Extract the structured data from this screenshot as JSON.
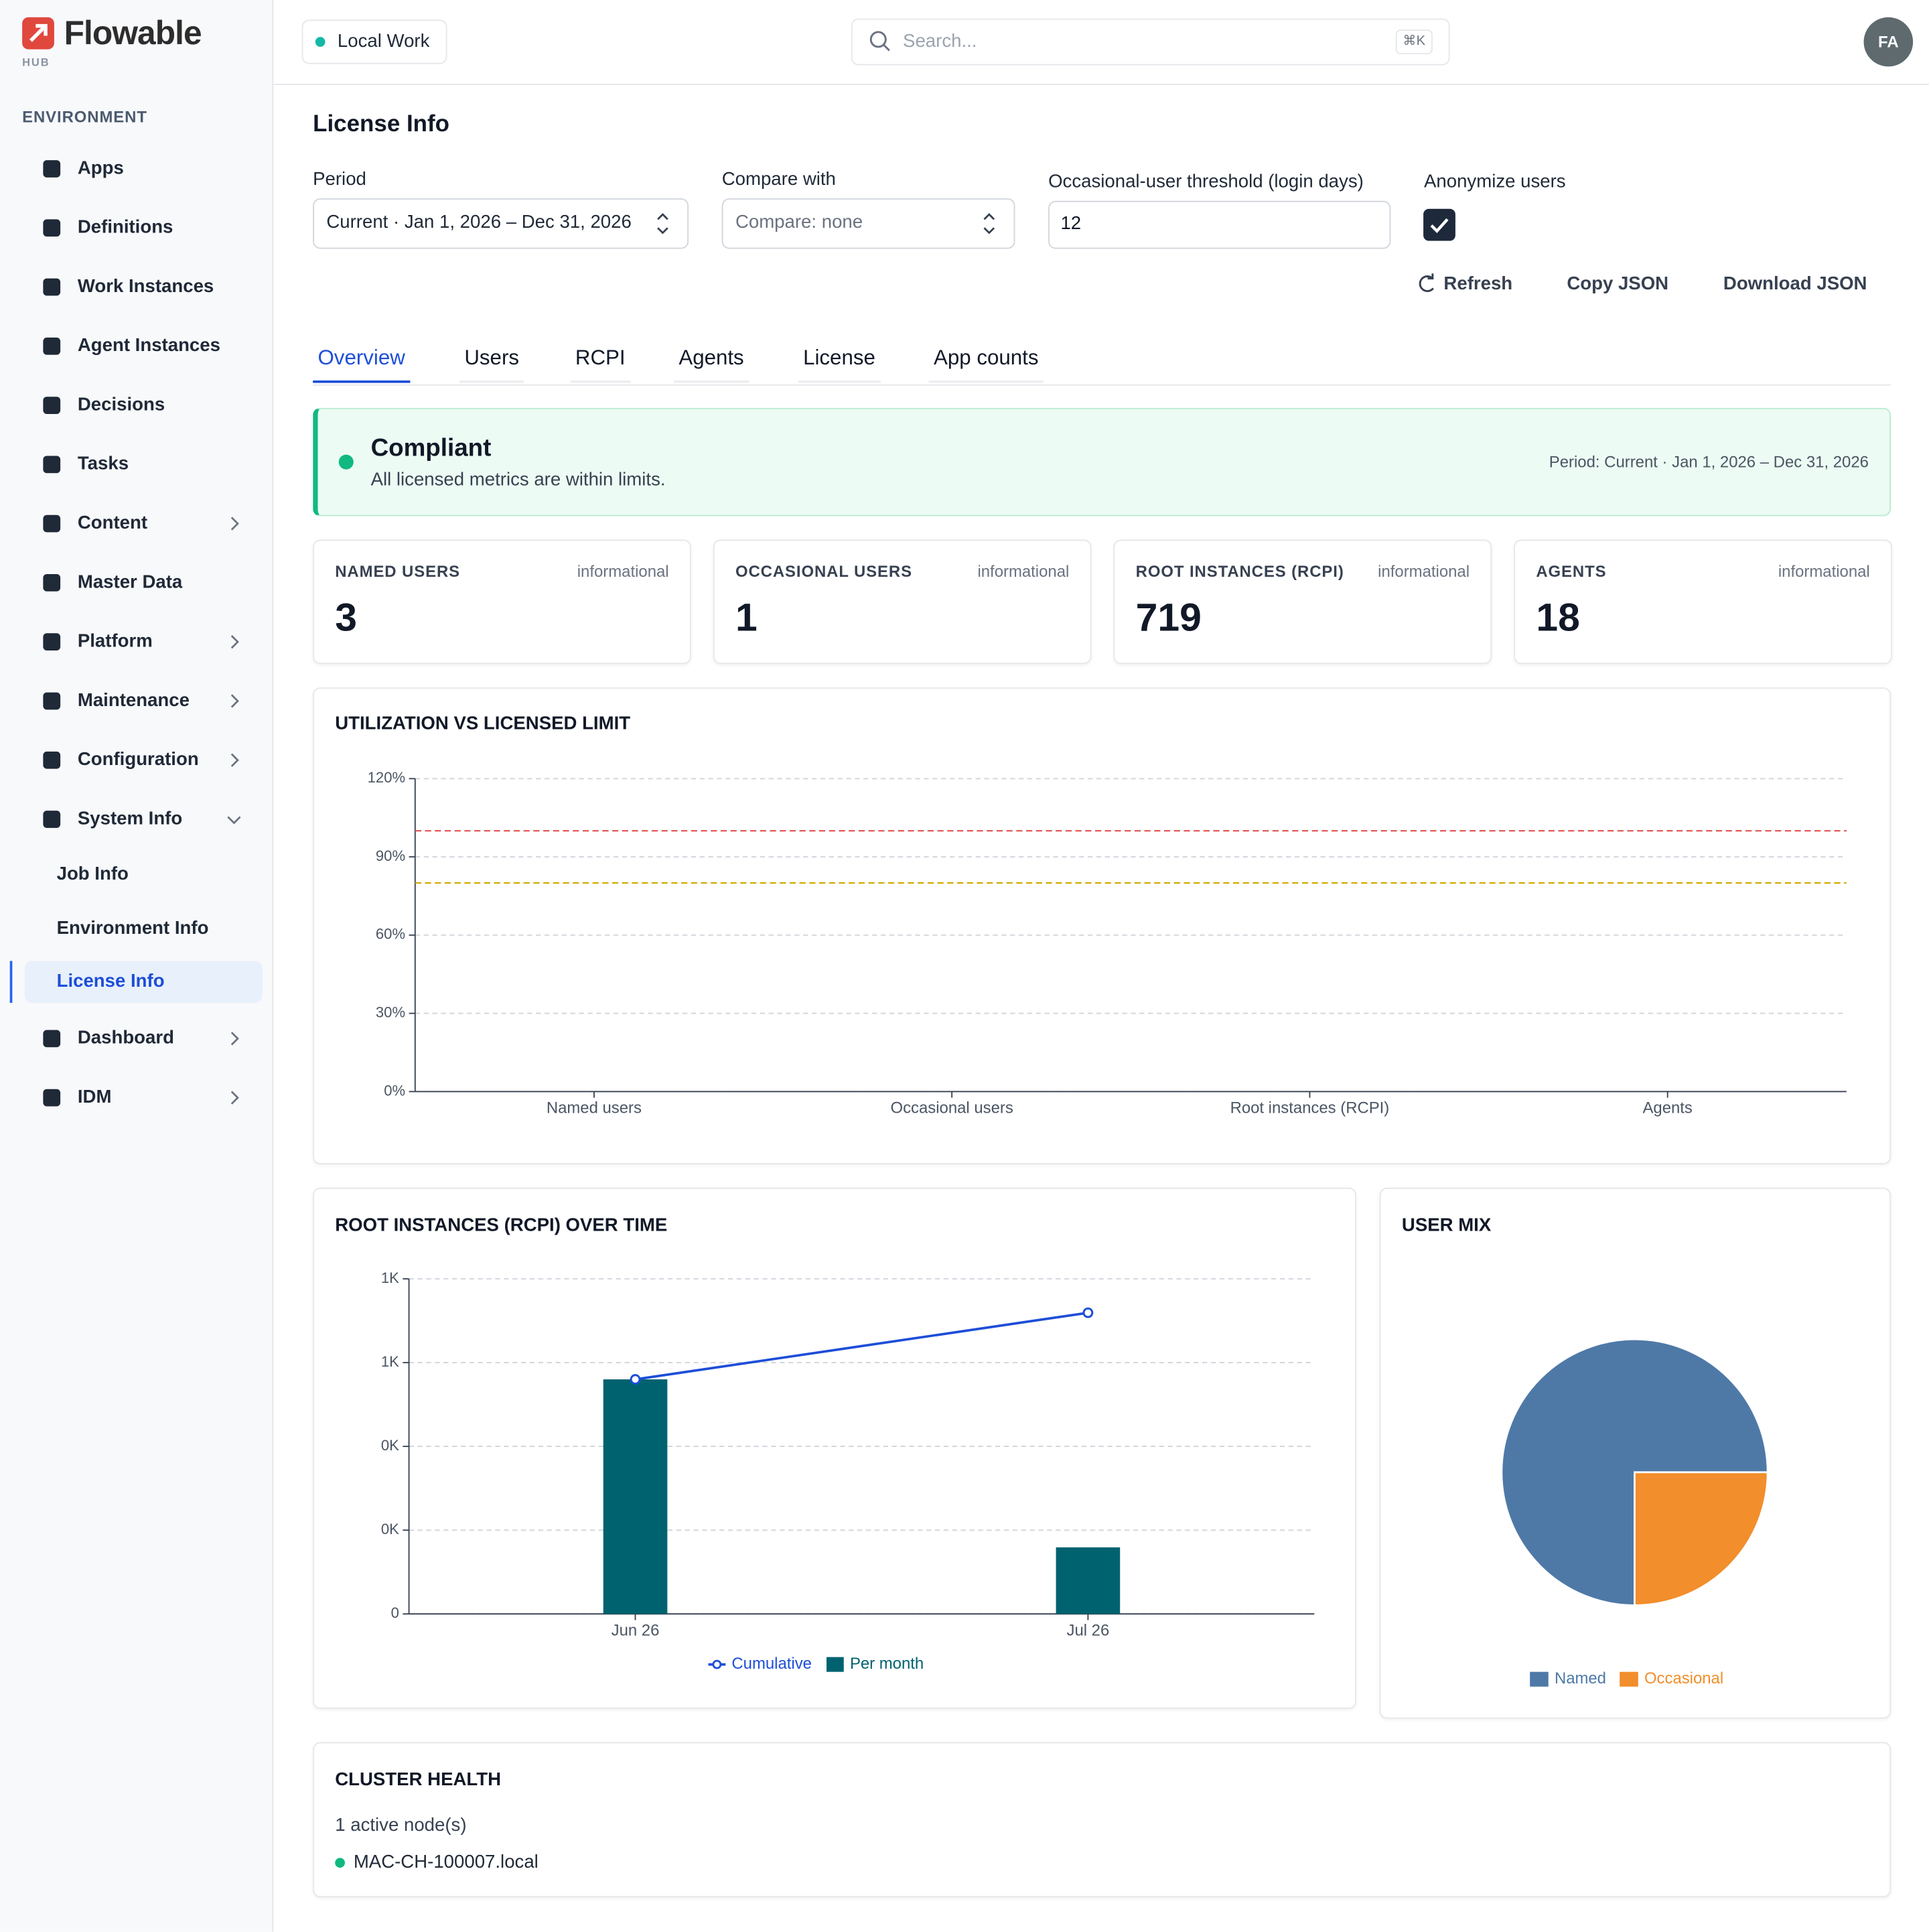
{
  "brand": {
    "name": "Flowable",
    "sub": "HUB"
  },
  "topbar": {
    "workspace": "Local Work",
    "search": "Search...",
    "shortcut": "⌘K",
    "avatar": "FA"
  },
  "sidebar": {
    "section": "ENVIRONMENT",
    "items": [
      {
        "label": "Apps"
      },
      {
        "label": "Definitions"
      },
      {
        "label": "Work Instances"
      },
      {
        "label": "Agent Instances"
      },
      {
        "label": "Decisions"
      },
      {
        "label": "Tasks"
      },
      {
        "label": "Content",
        "chevron": "right"
      },
      {
        "label": "Master Data"
      },
      {
        "label": "Platform",
        "chevron": "right"
      },
      {
        "label": "Maintenance",
        "chevron": "right"
      },
      {
        "label": "Configuration",
        "chevron": "right"
      },
      {
        "label": "System Info",
        "chevron": "down",
        "children": [
          {
            "label": "Job Info"
          },
          {
            "label": "Environment Info"
          },
          {
            "label": "License Info",
            "active": true
          }
        ]
      },
      {
        "label": "Dashboard",
        "chevron": "right"
      },
      {
        "label": "IDM",
        "chevron": "right"
      }
    ]
  },
  "page": {
    "title": "License Info",
    "filters": {
      "period": {
        "label": "Period",
        "value": "Current · Jan 1, 2026 – Dec 31, 2026"
      },
      "compare": {
        "label": "Compare with",
        "placeholder": "Compare: none"
      },
      "threshold": {
        "label": "Occasional-user threshold (login days)",
        "value": "12"
      },
      "anonymize": {
        "label": "Anonymize users",
        "checked": true
      }
    },
    "actions": [
      "Refresh",
      "Copy JSON",
      "Download JSON"
    ],
    "tabs": {
      "items": [
        "Overview",
        "Users",
        "RCPI",
        "Agents",
        "License",
        "App counts"
      ],
      "active": 0
    },
    "status": {
      "title": "Compliant",
      "message": "All licensed metrics are within limits.",
      "period": "Period: Current · Jan 1, 2026 – Dec 31, 2026"
    },
    "stats": [
      {
        "label": "NAMED USERS",
        "tag": "informational",
        "value": 3
      },
      {
        "label": "OCCASIONAL USERS",
        "tag": "informational",
        "value": 1
      },
      {
        "label": "ROOT INSTANCES (RCPI)",
        "tag": "informational",
        "value": 719
      },
      {
        "label": "AGENTS",
        "tag": "informational",
        "value": 18
      }
    ],
    "cluster": {
      "title": "CLUSTER HEALTH",
      "summary": "1 active node(s)",
      "nodes": [
        "MAC-CH-100007.local"
      ]
    }
  },
  "chart_data": [
    {
      "type": "bar",
      "title": "UTILIZATION VS LICENSED LIMIT",
      "categories": [
        "Named users",
        "Occasional users",
        "Root instances (RCPI)",
        "Agents"
      ],
      "values": [
        0,
        0,
        0,
        0
      ],
      "color": "#4e79a7",
      "ylim": [
        0,
        120
      ],
      "yticks": [
        {
          "value": 0,
          "label": "0%"
        },
        {
          "value": 30,
          "label": "30%"
        },
        {
          "value": 60,
          "label": "60%"
        },
        {
          "value": 90,
          "label": "90%"
        },
        {
          "value": 120,
          "label": "120%"
        }
      ],
      "grid": true,
      "reference_lines": [
        {
          "value": 100,
          "color": "#e0514f"
        },
        {
          "value": 80,
          "color": "#d4aa00"
        }
      ]
    },
    {
      "type": "combo",
      "title": "ROOT INSTANCES (RCPI) OVER TIME",
      "categories": [
        "Jun 26",
        "Jul 26"
      ],
      "series": [
        {
          "name": "Cumulative",
          "type": "line",
          "color": "#1d4ed8",
          "values": [
            560,
            719
          ]
        },
        {
          "name": "Per month",
          "type": "bar",
          "color": "#00626f",
          "values": [
            560,
            159
          ]
        }
      ],
      "ylim": [
        0,
        800
      ],
      "yticks": [
        0,
        {
          "value": 200,
          "label": "0K"
        },
        {
          "value": 400,
          "label": "0K"
        },
        {
          "value": 600,
          "label": "1K"
        },
        {
          "value": 800,
          "label": "1K"
        }
      ],
      "grid": true,
      "legend": "bottom"
    },
    {
      "type": "pie",
      "title": "USER MIX",
      "categories": [
        "Named",
        "Occasional"
      ],
      "values": [
        3,
        1
      ],
      "colors": [
        "#4e79a7",
        "#f28e2b"
      ],
      "legend": "bottom"
    }
  ]
}
